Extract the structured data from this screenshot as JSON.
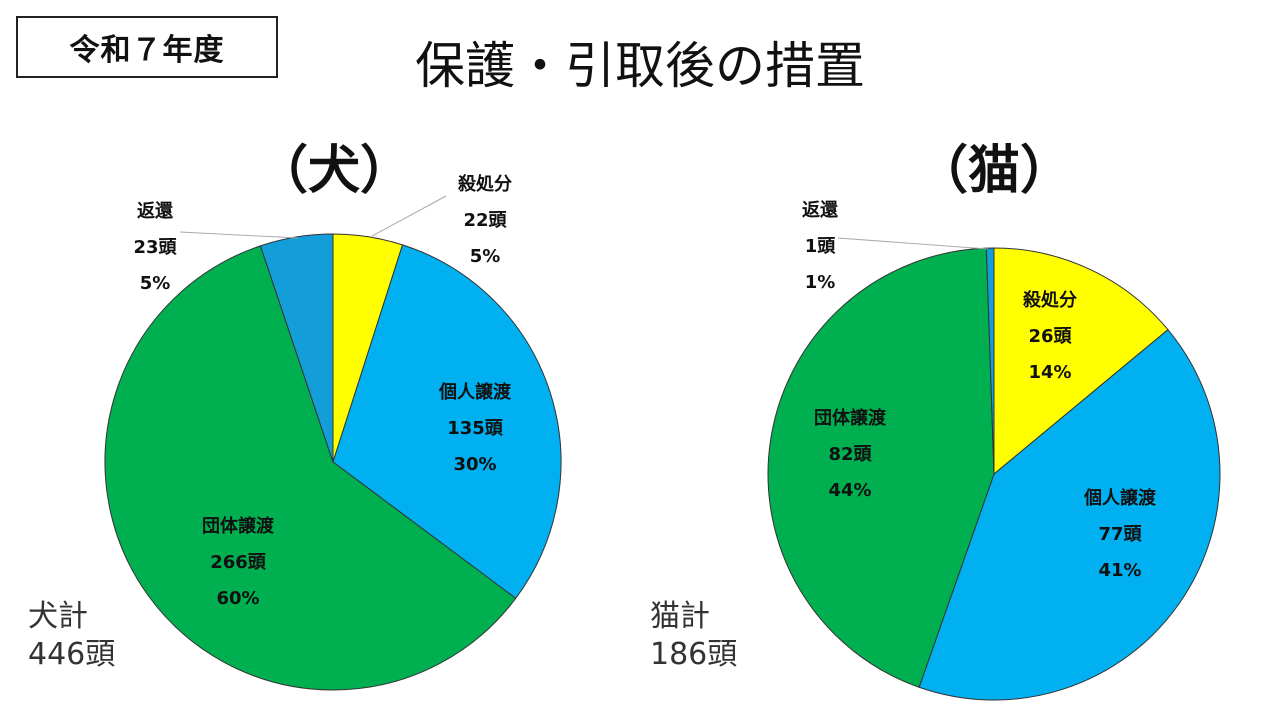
{
  "header": {
    "year": "令和７年度",
    "title": "保護・引取後の措置"
  },
  "charts": {
    "dog": {
      "title": "（犬）",
      "total_label": "犬計",
      "total_value": "446頭"
    },
    "cat": {
      "title": "（猫）",
      "total_label": "猫計",
      "total_value": "186頭"
    }
  },
  "chart_data": [
    {
      "type": "pie",
      "title": "（犬）",
      "slices": [
        {
          "name": "殺処分",
          "value": 22,
          "count_label": "22頭",
          "pct_label": "5%",
          "color": "#FFFF00"
        },
        {
          "name": "個人譲渡",
          "value": 135,
          "count_label": "135頭",
          "pct_label": "30%",
          "color": "#00B0F0"
        },
        {
          "name": "団体譲渡",
          "value": 266,
          "count_label": "266頭",
          "pct_label": "60%",
          "color": "#00B050"
        },
        {
          "name": "返還",
          "value": 23,
          "count_label": "23頭",
          "pct_label": "5%",
          "color": "#149ED9"
        }
      ]
    },
    {
      "type": "pie",
      "title": "（猫）",
      "slices": [
        {
          "name": "殺処分",
          "value": 26,
          "count_label": "26頭",
          "pct_label": "14%",
          "color": "#FFFF00"
        },
        {
          "name": "個人譲渡",
          "value": 77,
          "count_label": "77頭",
          "pct_label": "41%",
          "color": "#00B0F0"
        },
        {
          "name": "団体譲渡",
          "value": 82,
          "count_label": "82頭",
          "pct_label": "44%",
          "color": "#00B050"
        },
        {
          "name": "返還",
          "value": 1,
          "count_label": "1頭",
          "pct_label": "1%",
          "color": "#149ED9"
        }
      ]
    }
  ]
}
